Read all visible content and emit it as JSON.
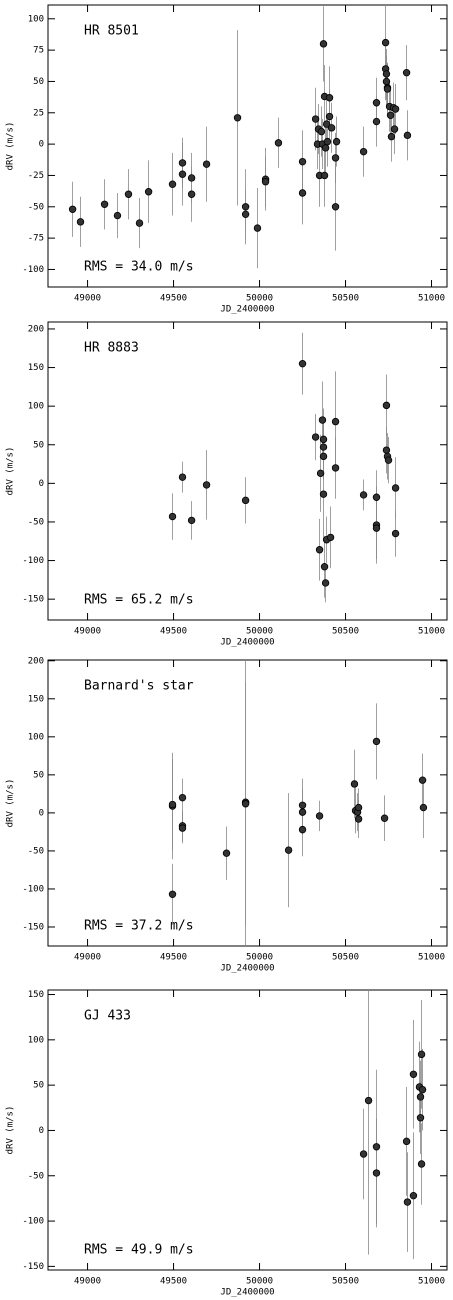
{
  "chart_data": [
    {
      "type": "scatter",
      "title": "HR 8501",
      "annotation": "RMS = 34.0 m/s",
      "x_label": "JD_2400000",
      "y_label": "dRV (m/s)",
      "color": "#333333",
      "error_color": "#888888",
      "x": [
        48913,
        48959,
        49099,
        49174,
        49238,
        49302,
        49355,
        49494,
        49552,
        49552,
        49605,
        49605,
        49692,
        49872,
        49919,
        49919,
        49988,
        50035,
        50035,
        50110,
        50250,
        50250,
        50326,
        50337,
        50343,
        50349,
        50360,
        50366,
        50372,
        50378,
        50378,
        50384,
        50390,
        50395,
        50407,
        50407,
        50419,
        50442,
        50442,
        50448,
        50605,
        50680,
        50680,
        50733,
        50733,
        50738,
        50738,
        50744,
        50744,
        50756,
        50762,
        50767,
        50779,
        50785,
        50791,
        50855,
        50860
      ],
      "y": [
        -52,
        -62,
        -48,
        -57,
        -40,
        -63,
        -38,
        -32,
        -24,
        -15,
        -40,
        -27,
        -16,
        21,
        -50,
        -56,
        -67,
        -28,
        -30,
        1,
        -14,
        -39,
        20,
        0,
        12,
        -25,
        10,
        0,
        80,
        38,
        -25,
        -3,
        16,
        2,
        37,
        22,
        13,
        -50,
        -11,
        2,
        -6,
        33,
        18,
        81,
        60,
        56,
        50,
        45,
        44,
        30,
        23,
        6,
        29,
        12,
        28,
        57,
        7
      ],
      "errors": [
        22,
        20,
        20,
        18,
        20,
        20,
        25,
        25,
        25,
        20,
        22,
        20,
        30,
        70,
        30,
        20,
        32,
        25,
        20,
        20,
        25,
        25,
        25,
        20,
        20,
        25,
        20,
        20,
        30,
        25,
        25,
        20,
        20,
        20,
        25,
        20,
        20,
        35,
        20,
        20,
        20,
        20,
        20,
        30,
        25,
        20,
        20,
        20,
        20,
        20,
        20,
        20,
        20,
        20,
        20,
        22,
        20
      ],
      "xlim": [
        48770,
        51090
      ],
      "ylim": [
        -114,
        111
      ],
      "xticks": [
        49000,
        49500,
        50000,
        50500,
        51000
      ],
      "yticks": [
        -100,
        -75,
        -50,
        -25,
        0,
        25,
        50,
        75,
        100
      ]
    },
    {
      "type": "scatter",
      "title": "HR 8883",
      "annotation": "RMS = 65.2 m/s",
      "x_label": "JD_2400000",
      "y_label": "dRV (m/s)",
      "color": "#333333",
      "error_color": "#888888",
      "x": [
        49494,
        49552,
        49605,
        49692,
        49919,
        50250,
        50326,
        50349,
        50355,
        50366,
        50372,
        50372,
        50372,
        50372,
        50378,
        50384,
        50390,
        50413,
        50442,
        50442,
        50605,
        50680,
        50680,
        50680,
        50738,
        50738,
        50744,
        50750,
        50791,
        50791
      ],
      "y": [
        -43,
        8,
        -48,
        -2,
        -22,
        155,
        60,
        -86,
        13,
        82,
        57,
        47,
        35,
        -14,
        -108,
        -129,
        -73,
        -70,
        80,
        20,
        -15,
        -18,
        -54,
        -58,
        101,
        43,
        35,
        30,
        -6,
        -65
      ],
      "errors": [
        30,
        20,
        25,
        45,
        30,
        40,
        30,
        40,
        50,
        50,
        40,
        40,
        30,
        60,
        40,
        25,
        30,
        40,
        65,
        40,
        20,
        35,
        50,
        40,
        40,
        30,
        30,
        30,
        40,
        30
      ],
      "xlim": [
        48770,
        51090
      ],
      "ylim": [
        -177,
        209
      ],
      "xticks": [
        49000,
        49500,
        50000,
        50500,
        51000
      ],
      "yticks": [
        -150,
        -100,
        -50,
        0,
        50,
        100,
        150,
        200
      ]
    },
    {
      "type": "scatter",
      "title": "Barnard's star",
      "annotation": "RMS = 37.2 m/s",
      "x_label": "JD_2400000",
      "y_label": "dRV (m/s)",
      "color": "#333333",
      "error_color": "#888888",
      "x": [
        49494,
        49494,
        49494,
        49552,
        49552,
        49552,
        49808,
        49919,
        49919,
        50169,
        50250,
        50250,
        50250,
        50349,
        50552,
        50558,
        50570,
        50576,
        50576,
        50680,
        50727,
        50948,
        50953
      ],
      "y": [
        9,
        11,
        -107,
        20,
        -17,
        -20,
        -53,
        14,
        12,
        -49,
        10,
        1,
        -22,
        -4,
        38,
        3,
        1,
        7,
        -8,
        94,
        -7,
        43,
        7
      ],
      "errors": [
        70,
        60,
        40,
        25,
        20,
        20,
        35,
        190,
        160,
        75,
        35,
        30,
        35,
        20,
        45,
        30,
        25,
        25,
        25,
        50,
        30,
        35,
        40
      ],
      "xlim": [
        48770,
        51090
      ],
      "ylim": [
        -175,
        201
      ],
      "xticks": [
        49000,
        49500,
        50000,
        50500,
        51000
      ],
      "yticks": [
        -150,
        -100,
        -50,
        0,
        50,
        100,
        150,
        200
      ]
    },
    {
      "type": "scatter",
      "title": "GJ 433",
      "annotation": "RMS = 49.9 m/s",
      "x_label": "JD_2400000",
      "y_label": "dRV (m/s)",
      "color": "#333333",
      "error_color": "#888888",
      "x": [
        50605,
        50634,
        50680,
        50680,
        50855,
        50860,
        50895,
        50895,
        50930,
        50936,
        50936,
        50942,
        50942,
        50948
      ],
      "y": [
        -26,
        33,
        -18,
        -47,
        -12,
        -79,
        -72,
        62,
        48,
        37,
        14,
        -37,
        84,
        45
      ],
      "errors": [
        50,
        170,
        85,
        60,
        60,
        55,
        70,
        60,
        50,
        40,
        40,
        45,
        60,
        45
      ],
      "xlim": [
        48770,
        51090
      ],
      "ylim": [
        -154,
        155
      ],
      "xticks": [
        49000,
        49500,
        50000,
        50500,
        51000
      ],
      "yticks": [
        -150,
        -100,
        -50,
        0,
        50,
        100,
        150
      ]
    }
  ]
}
